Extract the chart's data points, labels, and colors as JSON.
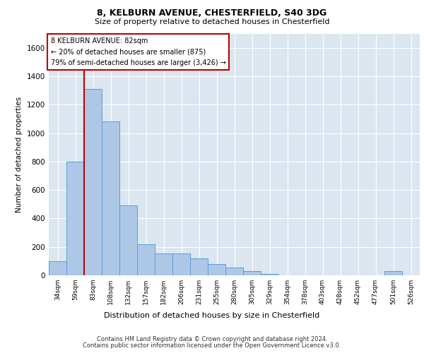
{
  "title1": "8, KELBURN AVENUE, CHESTERFIELD, S40 3DG",
  "title2": "Size of property relative to detached houses in Chesterfield",
  "xlabel": "Distribution of detached houses by size in Chesterfield",
  "ylabel": "Number of detached properties",
  "footer1": "Contains HM Land Registry data © Crown copyright and database right 2024.",
  "footer2": "Contains public sector information licensed under the Open Government Licence v3.0.",
  "annotation_line1": "8 KELBURN AVENUE: 82sqm",
  "annotation_line2": "← 20% of detached houses are smaller (875)",
  "annotation_line3": "79% of semi-detached houses are larger (3,426) →",
  "bar_color": "#adc8e6",
  "bar_edge_color": "#5b9bd5",
  "line_color": "#c00000",
  "background_color": "#dce6f1",
  "categories": [
    "34sqm",
    "59sqm",
    "83sqm",
    "108sqm",
    "132sqm",
    "157sqm",
    "182sqm",
    "206sqm",
    "231sqm",
    "255sqm",
    "280sqm",
    "305sqm",
    "329sqm",
    "354sqm",
    "378sqm",
    "403sqm",
    "428sqm",
    "452sqm",
    "477sqm",
    "501sqm",
    "526sqm"
  ],
  "values": [
    100,
    800,
    1310,
    1080,
    490,
    220,
    155,
    155,
    120,
    80,
    55,
    30,
    10,
    0,
    0,
    0,
    0,
    0,
    0,
    30,
    0
  ],
  "ylim": [
    0,
    1700
  ],
  "yticks": [
    0,
    200,
    400,
    600,
    800,
    1000,
    1200,
    1400,
    1600
  ],
  "marker_index": 2,
  "fig_width": 6.0,
  "fig_height": 5.0,
  "dpi": 100
}
